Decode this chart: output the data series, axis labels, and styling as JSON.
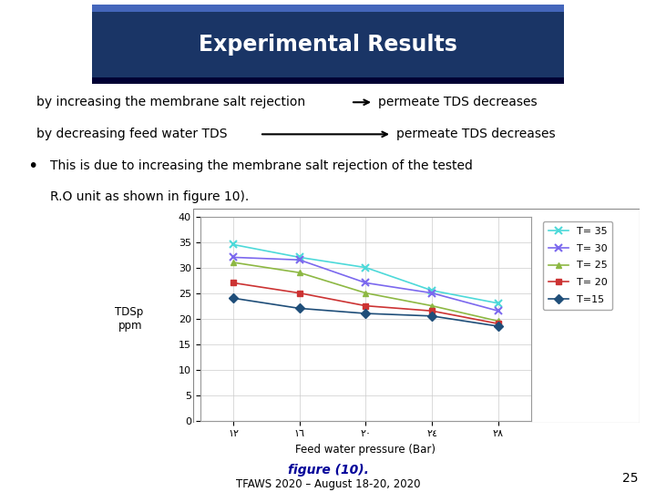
{
  "title": "Experimental Results",
  "subtitle_line1_left": "by increasing the membrane salt rejection",
  "subtitle_line1_right": "permeate TDS decreases",
  "subtitle_line2_left": "by decreasing feed water TDS",
  "subtitle_line2_right": "permeate TDS decreases",
  "bullet_text_line1": "This is due to increasing the membrane salt rejection of the tested",
  "bullet_text_line2": "R.O unit as shown in figure 10).",
  "figure_caption": "figure (10).",
  "conference": "TFAWS 2020 – August 18-20, 2020",
  "page_number": "25",
  "x_labels": [
    "؜١٢",
    "؜١٦",
    "؜٢٠",
    "؜٢٤",
    "؜٢٨"
  ],
  "x_values": [
    12,
    16,
    20,
    24,
    28
  ],
  "ylabel": "TDSp\nppm",
  "xlabel": "Feed water pressure (Bar)",
  "ylim": [
    0,
    40
  ],
  "yticks": [
    0,
    5,
    10,
    15,
    20,
    25,
    30,
    35,
    40
  ],
  "ytick_labels": [
    "0",
    "5",
    "10",
    "15",
    "20",
    "25",
    "30",
    "35",
    "40"
  ],
  "series": {
    "T= 35": {
      "values": [
        34.5,
        32.0,
        30.0,
        25.5,
        23.0
      ],
      "color": "#4DD9D9",
      "marker": "x",
      "linestyle": "-"
    },
    "T= 30": {
      "values": [
        32.0,
        31.5,
        27.0,
        25.0,
        21.5
      ],
      "color": "#7B68EE",
      "marker": "x",
      "linestyle": "-"
    },
    "T= 25": {
      "values": [
        31.0,
        29.0,
        25.0,
        22.5,
        19.5
      ],
      "color": "#8DB843",
      "marker": "^",
      "linestyle": "-"
    },
    "T= 20": {
      "values": [
        27.0,
        25.0,
        22.5,
        21.5,
        19.0
      ],
      "color": "#CC3333",
      "marker": "s",
      "linestyle": "-"
    },
    "T=15": {
      "values": [
        24.0,
        22.0,
        21.0,
        20.5,
        18.5
      ],
      "color": "#1F4E79",
      "marker": "D",
      "linestyle": "-"
    }
  },
  "bg_color": "#F0F0F0",
  "slide_bg": "#FFFFFF",
  "header_bg": "#1a3566",
  "header_text_color": "#FFFFFF",
  "header_stripe_top": "#3355AA",
  "header_stripe_bot": "#001133",
  "chart_bg": "#FFFFFF",
  "grid_color": "#CCCCCC",
  "text_color": "#000000",
  "caption_color": "#000099"
}
